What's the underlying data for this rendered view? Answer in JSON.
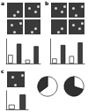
{
  "panel_labels": [
    "a",
    "b",
    "c"
  ],
  "chart_data": [
    {
      "type": "bar",
      "categories": [
        null,
        null,
        null,
        null
      ],
      "values": [
        35,
        80,
        15,
        70
      ],
      "colors": [
        "#ffffff",
        "#404040",
        "#ffffff",
        "#404040"
      ],
      "ylim": [
        0,
        100
      ],
      "tick_labels": false
    },
    {
      "type": "bar",
      "categories": [
        null,
        null,
        null,
        null
      ],
      "values": [
        20,
        75,
        30,
        85
      ],
      "colors": [
        "#ffffff",
        "#404040",
        "#ffffff",
        "#404040"
      ],
      "ylim": [
        0,
        100
      ],
      "tick_labels": false
    },
    {
      "type": "bar",
      "categories": [
        null,
        null
      ],
      "values": [
        25,
        80
      ],
      "colors": [
        "#ffffff",
        "#404040"
      ],
      "ylim": [
        0,
        100
      ],
      "tick_labels": false
    },
    {
      "type": "pie",
      "values": [
        65,
        35
      ],
      "colors": [
        "#ffffff",
        "#303030"
      ]
    },
    {
      "type": "pie",
      "values": [
        30,
        70
      ],
      "colors": [
        "#ffffff",
        "#303030"
      ]
    }
  ]
}
